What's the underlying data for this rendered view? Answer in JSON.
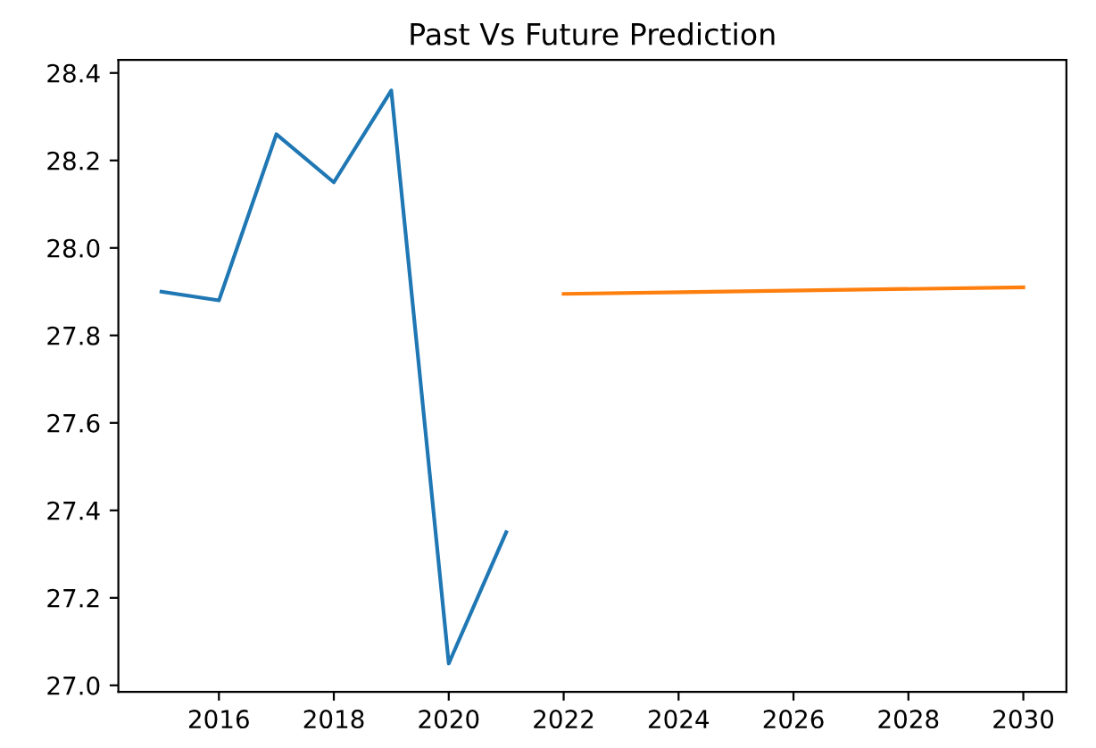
{
  "chart_data": {
    "type": "line",
    "title": "Past Vs Future Prediction",
    "series": [
      {
        "color": "#1f77b4",
        "x": [
          2015,
          2016,
          2017,
          2018,
          2019,
          2020,
          2021
        ],
        "values": [
          27.9,
          27.88,
          28.26,
          28.15,
          28.36,
          27.05,
          27.35
        ]
      },
      {
        "color": "#ff7f0e",
        "x": [
          2022,
          2030
        ],
        "values": [
          27.895,
          27.91
        ]
      }
    ],
    "xlim": [
      2014.25,
      2030.75
    ],
    "xticks": [
      2016,
      2018,
      2020,
      2022,
      2024,
      2026,
      2028,
      2030
    ],
    "ylim": [
      26.985,
      28.43
    ],
    "yticks": [
      {
        "value": 27.0,
        "label": "27.0"
      },
      {
        "value": 27.2,
        "label": "27.2"
      },
      {
        "value": 27.4,
        "label": "27.4"
      },
      {
        "value": 27.6,
        "label": "27.6"
      },
      {
        "value": 27.8,
        "label": "27.8"
      },
      {
        "value": 28.0,
        "label": "28.0"
      },
      {
        "value": 28.2,
        "label": "28.2"
      },
      {
        "value": 28.4,
        "label": "28.4"
      }
    ],
    "grid": false,
    "legend": false
  }
}
